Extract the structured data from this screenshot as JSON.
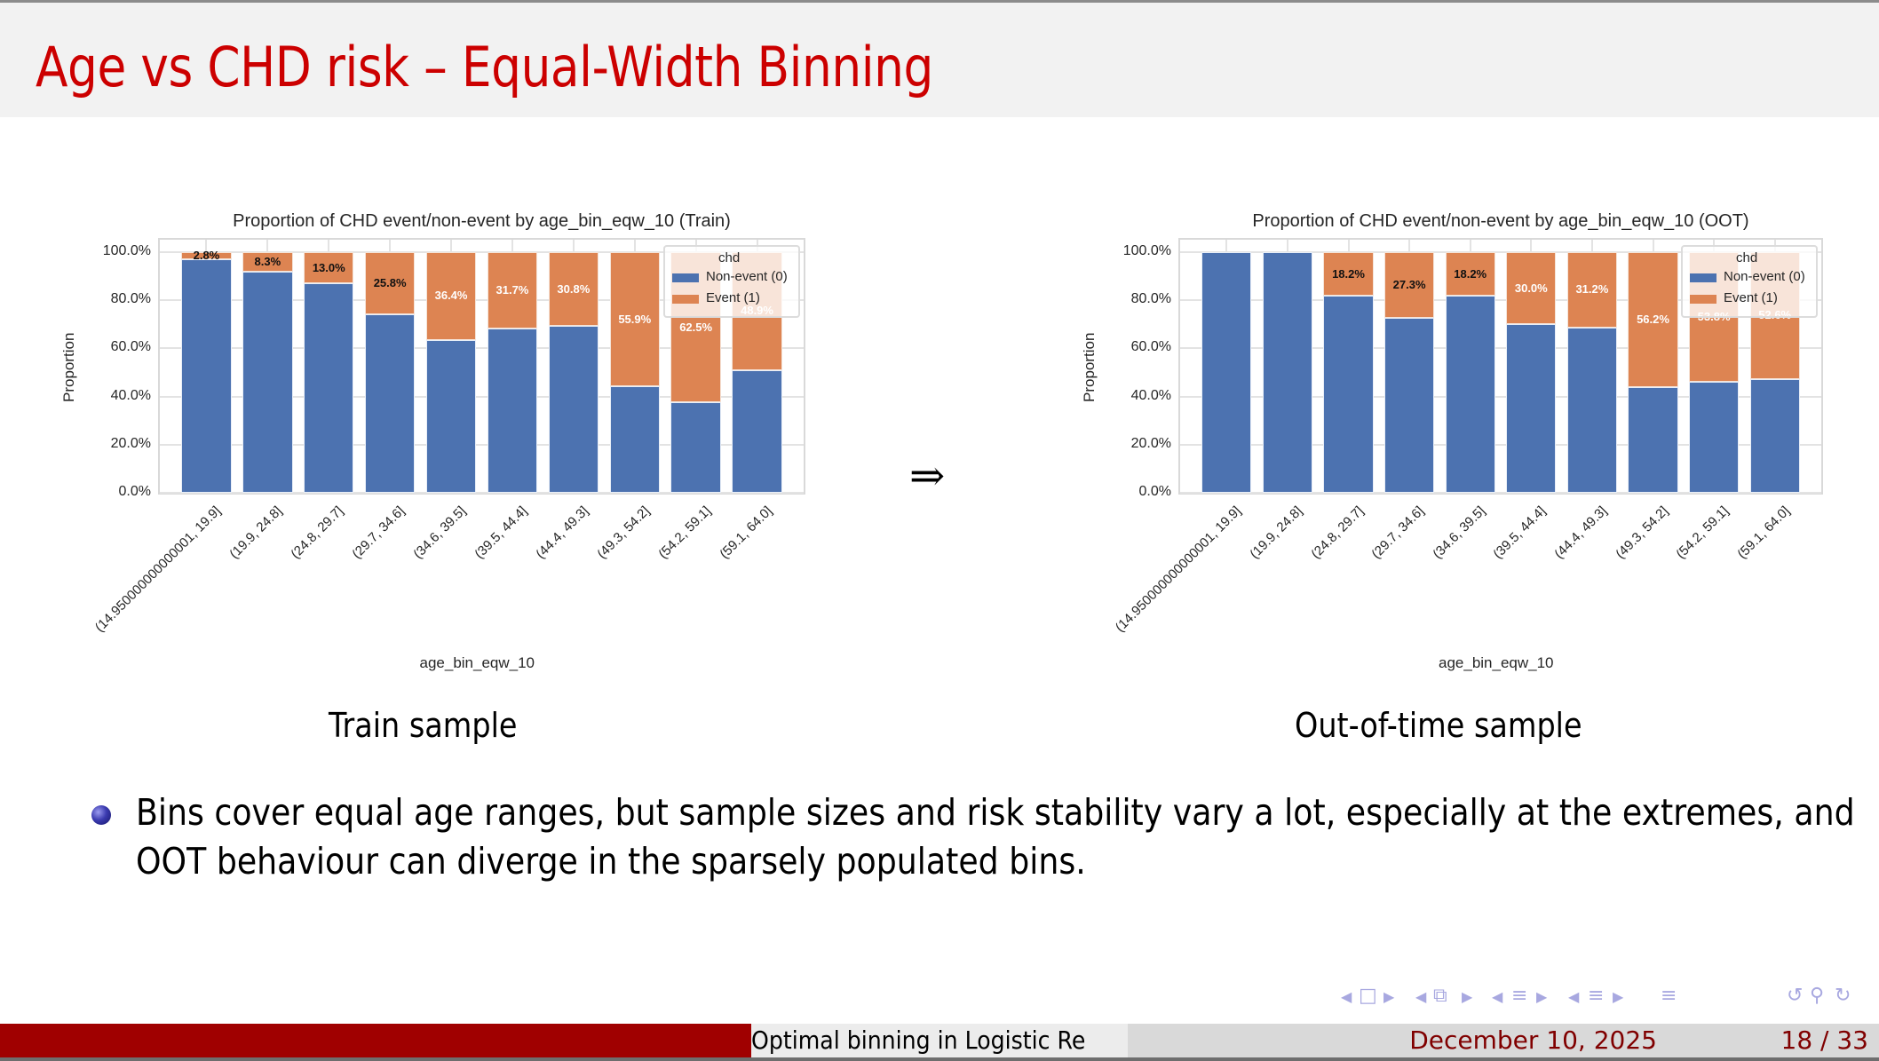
{
  "slide": {
    "title": "Age vs CHD risk – Equal-Width Binning",
    "arrow": "⇒",
    "captions": {
      "left": "Train sample",
      "right": "Out-of-time sample"
    },
    "bullet": "Bins cover equal age ranges, but sample sizes and risk stability vary a lot, especially at the extremes, and OOT behaviour can diverge in the sparsely populated bins.",
    "footer": {
      "short_title": "Optimal binning in Logistic Re",
      "date": "December 10, 2025",
      "page": "18 / 33",
      "accent_color": "#a00000"
    },
    "nav_icons": [
      "nav-prev-frame",
      "frame-icon",
      "nav-next-frame",
      "nav-prev-subsection",
      "subsection-icon",
      "nav-next-subsection",
      "nav-prev-section",
      "section-icon",
      "nav-next-section",
      "nav-prev-doc",
      "document-icon",
      "nav-next-doc",
      "appendix-icon",
      "back-icon",
      "search-icon",
      "forward-icon"
    ]
  },
  "chart_data": [
    {
      "type": "bar",
      "stacked": true,
      "title": "Proportion of CHD event/non-event by age_bin_eqw_10 (Train)",
      "xlabel": "age_bin_eqw_10",
      "ylabel": "Proportion",
      "ylim": [
        0,
        1
      ],
      "yticks": [
        "0.0%",
        "20.0%",
        "40.0%",
        "60.0%",
        "80.0%",
        "100.0%"
      ],
      "grid": true,
      "legend": {
        "title": "chd",
        "position": "upper right",
        "entries": [
          "Non-event (0)",
          "Event (1)"
        ]
      },
      "categories": [
        "(14.950000000000001, 19.9]",
        "(19.9, 24.8]",
        "(24.8, 29.7]",
        "(29.7, 34.6]",
        "(34.6, 39.5]",
        "(39.5, 44.4]",
        "(44.4, 49.3]",
        "(49.3, 54.2]",
        "(54.2, 59.1]",
        "(59.1, 64.0]"
      ],
      "series": [
        {
          "name": "Non-event (0)",
          "color": "#4c72b0",
          "values": [
            97.2,
            91.7,
            87.0,
            74.2,
            63.6,
            68.3,
            69.2,
            44.1,
            37.5,
            51.1
          ]
        },
        {
          "name": "Event (1)",
          "color": "#dd8452",
          "values": [
            2.8,
            8.3,
            13.0,
            25.8,
            36.4,
            31.7,
            30.8,
            55.9,
            62.5,
            48.9
          ]
        }
      ],
      "data_labels": [
        "2.8%",
        "8.3%",
        "13.0%",
        "25.8%",
        "36.4%",
        "31.7%",
        "30.8%",
        "55.9%",
        "62.5%",
        "48.9%"
      ]
    },
    {
      "type": "bar",
      "stacked": true,
      "title": "Proportion of CHD event/non-event by age_bin_eqw_10 (OOT)",
      "xlabel": "age_bin_eqw_10",
      "ylabel": "Proportion",
      "ylim": [
        0,
        1
      ],
      "yticks": [
        "0.0%",
        "20.0%",
        "40.0%",
        "60.0%",
        "80.0%",
        "100.0%"
      ],
      "grid": true,
      "legend": {
        "title": "chd",
        "position": "upper right",
        "entries": [
          "Non-event (0)",
          "Event (1)"
        ]
      },
      "categories": [
        "(14.950000000000001, 19.9]",
        "(19.9, 24.8]",
        "(24.8, 29.7]",
        "(29.7, 34.6]",
        "(34.6, 39.5]",
        "(39.5, 44.4]",
        "(44.4, 49.3]",
        "(49.3, 54.2]",
        "(54.2, 59.1]",
        "(59.1, 64.0]"
      ],
      "series": [
        {
          "name": "Non-event (0)",
          "color": "#4c72b0",
          "values": [
            100.0,
            100.0,
            81.8,
            72.7,
            81.8,
            70.0,
            68.8,
            43.8,
            46.2,
            47.4
          ]
        },
        {
          "name": "Event (1)",
          "color": "#dd8452",
          "values": [
            0.0,
            0.0,
            18.2,
            27.3,
            18.2,
            30.0,
            31.2,
            56.2,
            53.8,
            52.6
          ]
        }
      ],
      "data_labels": [
        "",
        "",
        "18.2%",
        "27.3%",
        "18.2%",
        "30.0%",
        "31.2%",
        "56.2%",
        "53.8%",
        "52.6%"
      ]
    }
  ]
}
